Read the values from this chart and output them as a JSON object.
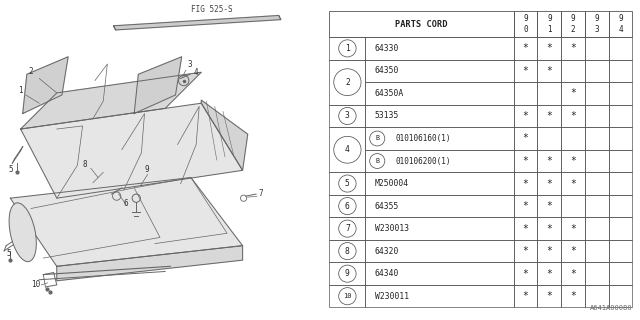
{
  "fig_label": "FIG 525-S",
  "parts_cord_header": "PARTS CORD",
  "year_labels_top": [
    "9",
    "9",
    "9",
    "9",
    "9"
  ],
  "year_labels_bot": [
    "0",
    "1",
    "2",
    "3",
    "4"
  ],
  "rows": [
    {
      "ref": "1",
      "part": "64330",
      "stars": [
        1,
        1,
        1,
        0,
        0
      ],
      "bold_circle": false
    },
    {
      "ref": "2",
      "part": "64350",
      "stars": [
        1,
        1,
        0,
        0,
        0
      ],
      "bold_circle": false
    },
    {
      "ref": "",
      "part": "64350A",
      "stars": [
        0,
        0,
        1,
        0,
        0
      ],
      "bold_circle": false
    },
    {
      "ref": "3",
      "part": "53135",
      "stars": [
        1,
        1,
        1,
        0,
        0
      ],
      "bold_circle": false
    },
    {
      "ref": "4",
      "part": "010106160(1)",
      "stars": [
        1,
        0,
        0,
        0,
        0
      ],
      "bold_circle": true
    },
    {
      "ref": "",
      "part": "010106200(1)",
      "stars": [
        1,
        1,
        1,
        0,
        0
      ],
      "bold_circle": true
    },
    {
      "ref": "5",
      "part": "M250004",
      "stars": [
        1,
        1,
        1,
        0,
        0
      ],
      "bold_circle": false
    },
    {
      "ref": "6",
      "part": "64355",
      "stars": [
        1,
        1,
        0,
        0,
        0
      ],
      "bold_circle": false
    },
    {
      "ref": "7",
      "part": "W230013",
      "stars": [
        1,
        1,
        1,
        0,
        0
      ],
      "bold_circle": false
    },
    {
      "ref": "8",
      "part": "64320",
      "stars": [
        1,
        1,
        1,
        0,
        0
      ],
      "bold_circle": false
    },
    {
      "ref": "9",
      "part": "64340",
      "stars": [
        1,
        1,
        1,
        0,
        0
      ],
      "bold_circle": false
    },
    {
      "ref": "10",
      "part": "W230011",
      "stars": [
        1,
        1,
        1,
        0,
        0
      ],
      "bold_circle": false
    }
  ],
  "bg_color": "#ffffff",
  "catalog_no": "A641A00080"
}
